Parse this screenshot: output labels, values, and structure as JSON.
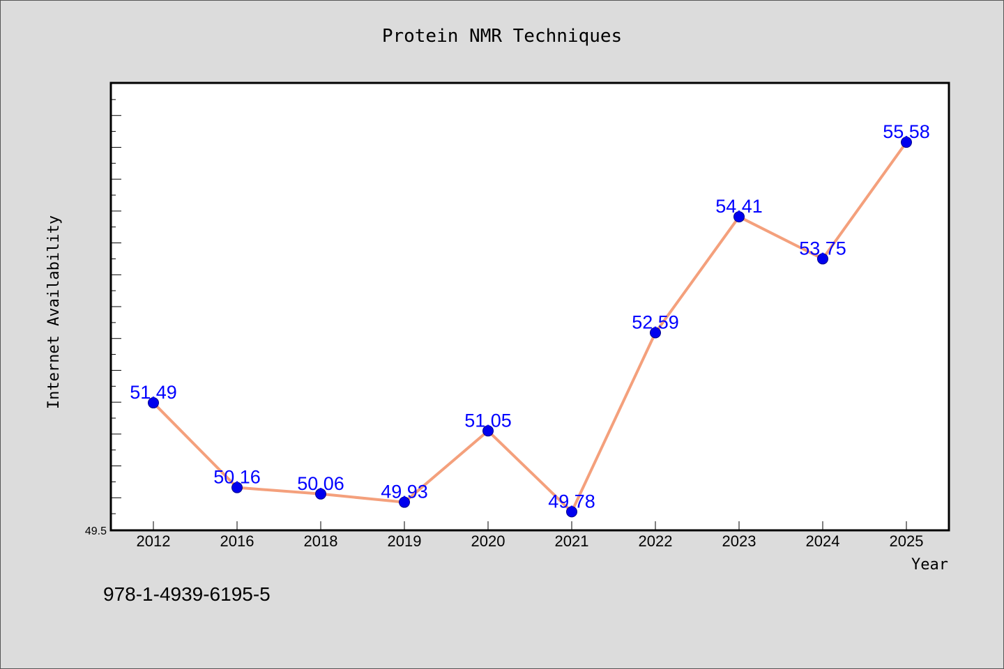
{
  "chart_data": {
    "type": "line",
    "title": "Protein NMR Techniques",
    "xlabel": "Year",
    "ylabel": "Internet Availability",
    "categories": [
      "2012",
      "2016",
      "2018",
      "2019",
      "2020",
      "2021",
      "2022",
      "2023",
      "2024",
      "2025"
    ],
    "series": [
      {
        "values": [
          51.49,
          50.16,
          50.06,
          49.93,
          51.05,
          49.78,
          52.59,
          54.41,
          53.75,
          55.58
        ],
        "labels": [
          "51.49",
          "50.16",
          "50.06",
          "49.93",
          "51.05",
          "49.78",
          "52.59",
          "54.41",
          "53.75",
          "55.58"
        ],
        "line_color": "#f4a07c",
        "marker_color": "#0000ee"
      }
    ],
    "ylim": [
      49.5,
      56.5
    ],
    "y_tick_label": "49.5",
    "grid": false,
    "label_color": "#0000ff"
  },
  "footer": {
    "code": "978-1-4939-6195-5"
  },
  "colors": {
    "background": "#dcdcdc",
    "plot_background": "#ffffff"
  }
}
